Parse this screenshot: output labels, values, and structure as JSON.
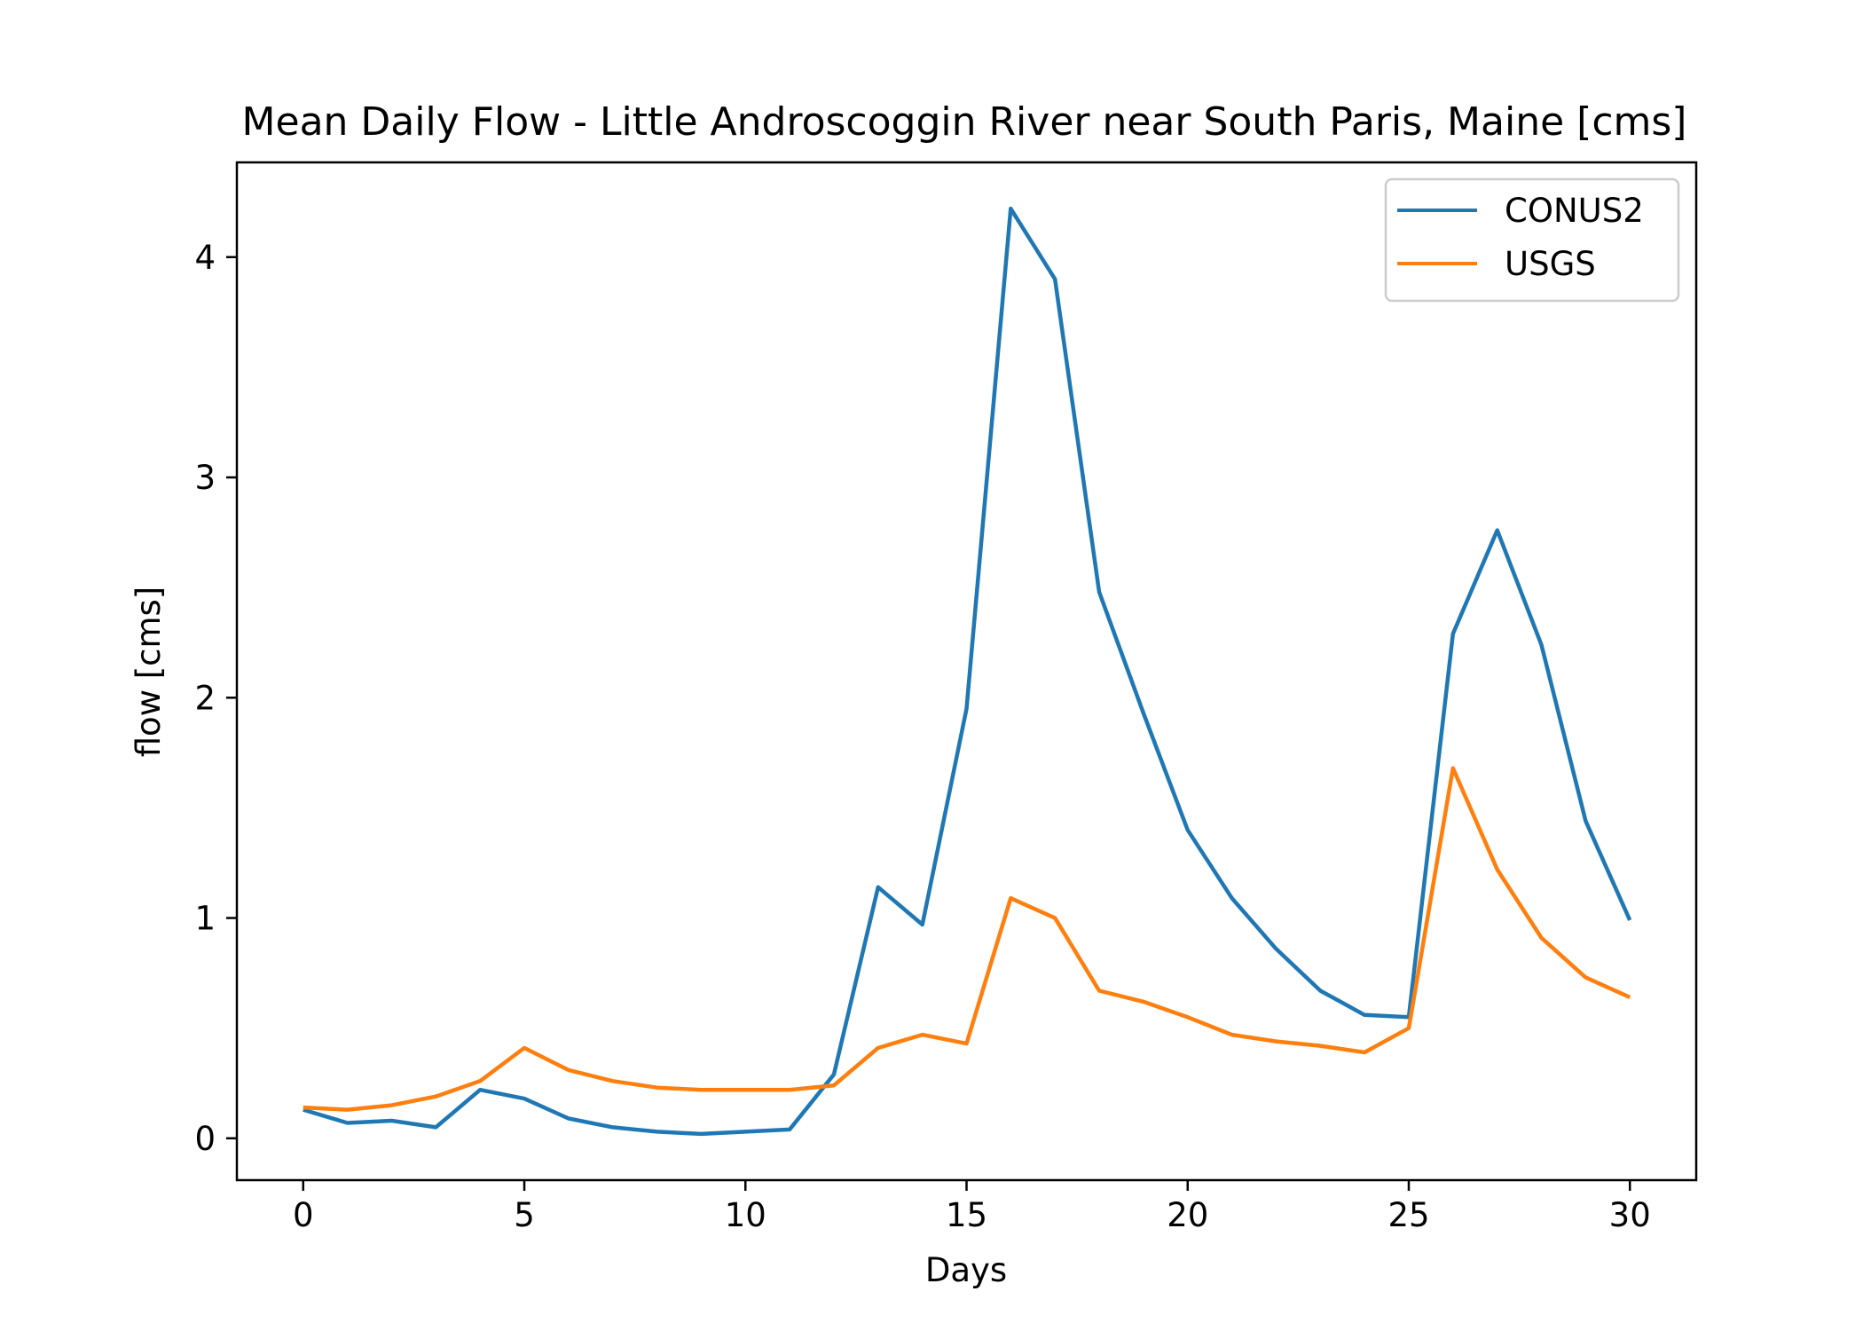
{
  "chart_data": {
    "type": "line",
    "title": "Mean Daily Flow - Little Androscoggin River near South Paris, Maine [cms]",
    "xlabel": "Days",
    "ylabel": "flow [cms]",
    "xlim": [
      -1.5,
      31.5
    ],
    "ylim": [
      -0.19,
      4.43
    ],
    "xticks": [
      0,
      5,
      10,
      15,
      20,
      25,
      30
    ],
    "yticks": [
      0,
      1,
      2,
      3,
      4
    ],
    "grid": false,
    "legend_position": "top-right",
    "x": [
      0,
      1,
      2,
      3,
      4,
      5,
      6,
      7,
      8,
      9,
      10,
      11,
      12,
      13,
      14,
      15,
      16,
      17,
      18,
      19,
      20,
      21,
      22,
      23,
      24,
      25,
      26,
      27,
      28,
      29,
      30
    ],
    "series": [
      {
        "name": "CONUS2",
        "color": "#1f77b4",
        "values": [
          0.13,
          0.07,
          0.08,
          0.05,
          0.22,
          0.18,
          0.09,
          0.05,
          0.03,
          0.02,
          0.03,
          0.04,
          0.29,
          1.14,
          0.97,
          1.95,
          4.22,
          3.9,
          2.48,
          1.93,
          1.4,
          1.09,
          0.86,
          0.67,
          0.56,
          0.55,
          2.29,
          2.76,
          2.24,
          1.44,
          0.99
        ]
      },
      {
        "name": "USGS",
        "color": "#ff7f0e",
        "values": [
          0.14,
          0.13,
          0.15,
          0.19,
          0.26,
          0.41,
          0.31,
          0.26,
          0.23,
          0.22,
          0.22,
          0.22,
          0.24,
          0.41,
          0.47,
          0.43,
          1.09,
          1.0,
          0.67,
          0.62,
          0.55,
          0.47,
          0.44,
          0.42,
          0.39,
          0.5,
          1.68,
          1.22,
          0.91,
          0.73,
          0.64
        ]
      }
    ]
  }
}
